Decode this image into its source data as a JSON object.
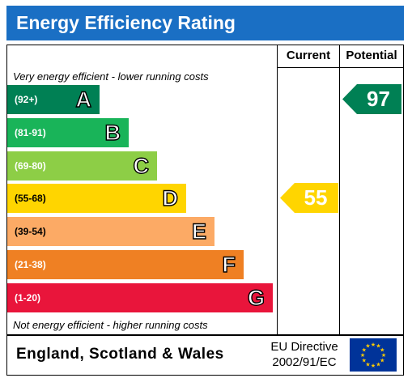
{
  "title": "Energy Efficiency Rating",
  "columns": {
    "current": "Current",
    "potential": "Potential"
  },
  "notes": {
    "top": "Very energy efficient - lower running costs",
    "bottom": "Not energy efficient - higher running costs"
  },
  "footer": {
    "country": "England, Scotland & Wales",
    "directive_line1": "EU Directive",
    "directive_line2": "2002/91/EC",
    "flag_icon": "eu-flag-icon"
  },
  "colors": {
    "title_bar": "#1a6fc4",
    "eu_flag": "#003399",
    "eu_stars": "#ffcc00"
  },
  "chart_data": {
    "type": "bar",
    "categories": [
      "A",
      "B",
      "C",
      "D",
      "E",
      "F",
      "G"
    ],
    "ranges": [
      "(92+)",
      "(81-91)",
      "(69-80)",
      "(55-68)",
      "(39-54)",
      "(21-38)",
      "(1-20)"
    ],
    "band_colors": [
      "#008054",
      "#19b459",
      "#8dce46",
      "#ffd500",
      "#fcaa65",
      "#ef8023",
      "#e9153b"
    ],
    "current": {
      "value": 55,
      "band": "D",
      "color": "#ffd500"
    },
    "potential": {
      "value": 97,
      "band": "A",
      "color": "#008054"
    }
  }
}
